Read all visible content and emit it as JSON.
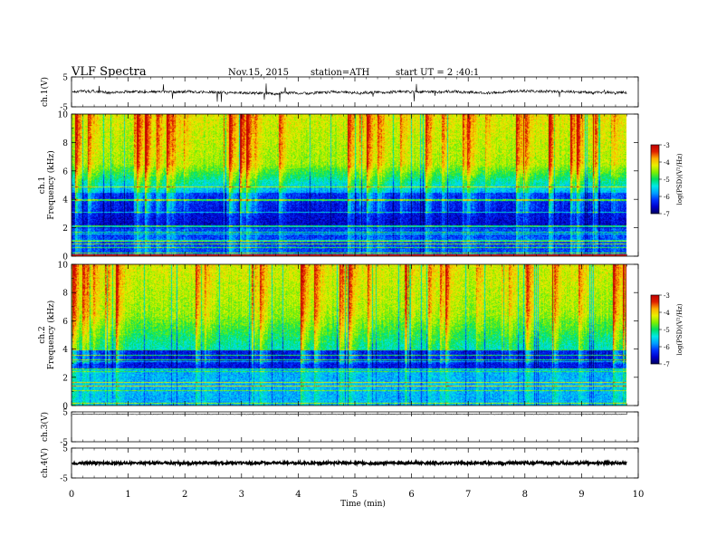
{
  "header": {
    "title": "VLF  Spectra",
    "date": "Nov.15, 2015",
    "station": "station=ATH",
    "start": "start  UT  =   2  :40:1"
  },
  "colors": {
    "spectrogram": [
      "#000060",
      "#0000cc",
      "#0033ff",
      "#00a0ff",
      "#00e8e8",
      "#00e060",
      "#7cf000",
      "#e8f000",
      "#ffb000",
      "#e02000",
      "#c00000",
      "#ffffff"
    ],
    "trace": "#000000",
    "frame": "#000000"
  },
  "chart_data": [
    {
      "type": "line",
      "name": "ch1-waveform",
      "ylabel": "ch.1(V)",
      "ylim": [
        -5,
        5
      ],
      "yticks": [
        "5",
        "-5"
      ],
      "xlim": [
        0,
        10
      ],
      "baseline": 0,
      "amplitude": "noisy, ~±1 V with spikes"
    },
    {
      "type": "heatmap",
      "name": "ch1-spectrogram",
      "ylabel_line1": "ch.1",
      "ylabel_line2": "Frequency  (kHz)",
      "ylim": [
        0,
        10
      ],
      "yticks": [
        "0",
        "2",
        "4",
        "6",
        "8",
        "10"
      ],
      "xlim": [
        0,
        9.8
      ],
      "colorbar": {
        "label": "log(PSD)(V²/Hz)",
        "range": [
          -7,
          -3
        ],
        "ticks": [
          "-3",
          "-4",
          "-5",
          "-6",
          "-7"
        ]
      }
    },
    {
      "type": "heatmap",
      "name": "ch2-spectrogram",
      "ylabel_line1": "ch.2",
      "ylabel_line2": "Frequency  (kHz)",
      "ylim": [
        0,
        10
      ],
      "yticks": [
        "0",
        "2",
        "4",
        "6",
        "8",
        "10"
      ],
      "xlim": [
        0,
        9.8
      ],
      "colorbar": {
        "label": "log(PSD)(V²/Hz)",
        "range": [
          -7,
          -3
        ],
        "ticks": [
          "-3",
          "-4",
          "-5",
          "-6",
          "-7"
        ]
      }
    },
    {
      "type": "line",
      "name": "ch3-waveform",
      "ylabel": "ch.3(V)",
      "ylim": [
        -5,
        5
      ],
      "yticks": [
        "5",
        "-5"
      ],
      "xlim": [
        0,
        10
      ],
      "baseline": 4.2
    },
    {
      "type": "line",
      "name": "ch4-waveform",
      "ylabel": "ch.4(V)",
      "ylim": [
        -5,
        5
      ],
      "yticks": [
        "5",
        "-5"
      ],
      "xlim": [
        0,
        10
      ],
      "baseline": 0
    }
  ],
  "xaxis": {
    "label": "Time  (min)",
    "range": [
      0,
      10
    ],
    "ticks": [
      "0",
      "1",
      "2",
      "3",
      "4",
      "5",
      "6",
      "7",
      "8",
      "9",
      "10"
    ]
  }
}
